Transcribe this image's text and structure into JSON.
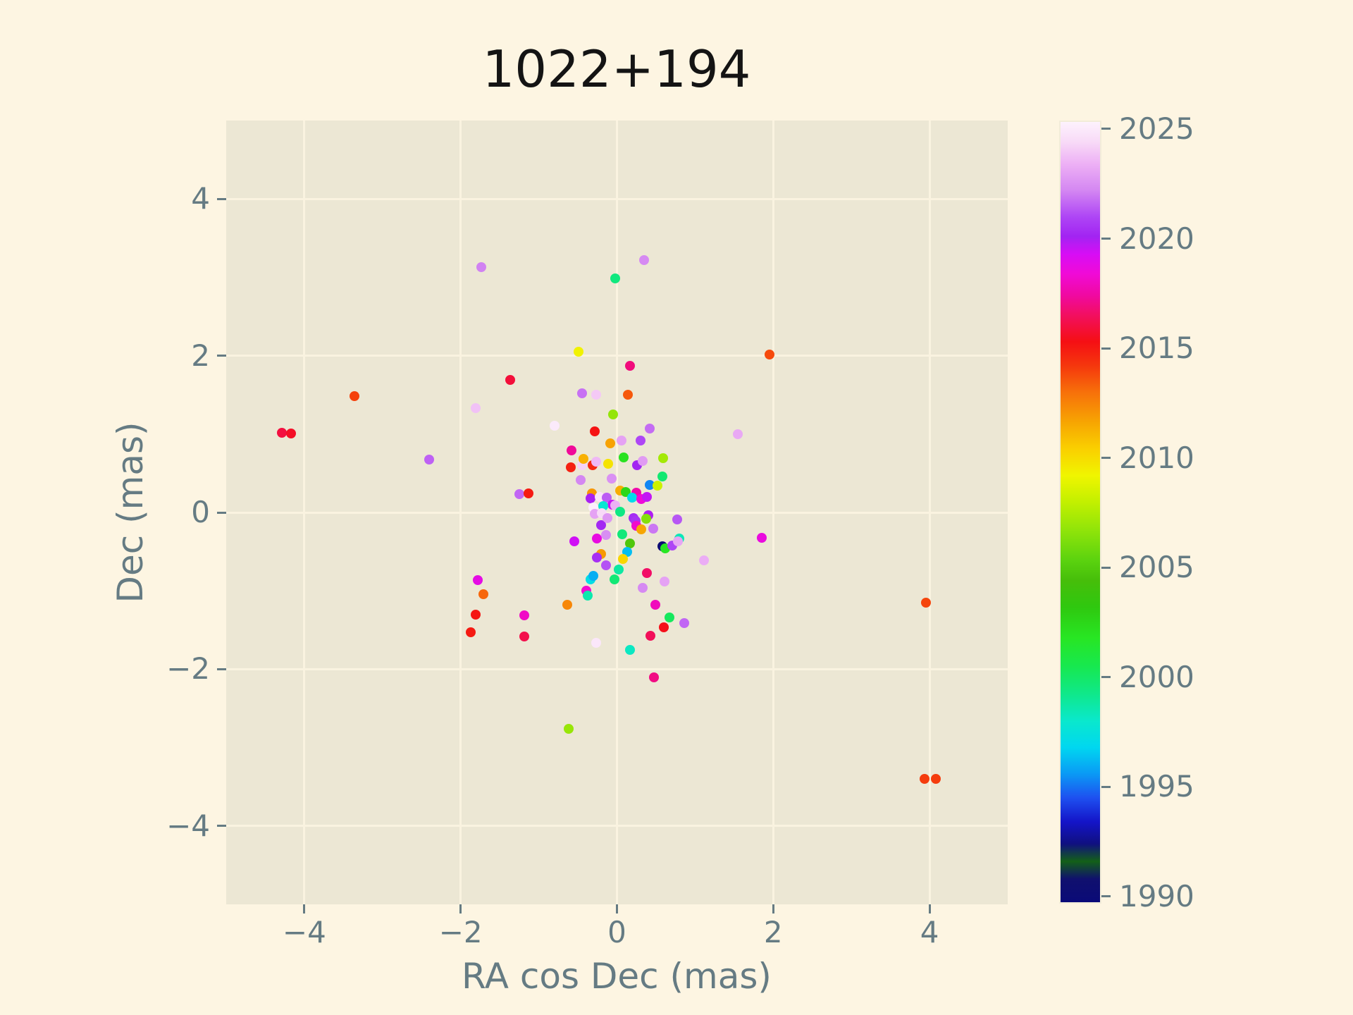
{
  "title": "1022+194",
  "style": {
    "figure_bg": "#fdf5e2",
    "plot_bg": "#ece7d4",
    "grid_color": "#faf3e0",
    "tick_color": "#657b83",
    "title_color": "#141414"
  },
  "axes": {
    "xlabel": "RA cos Dec (mas)",
    "ylabel": "Dec (mas)",
    "xlim": [
      -5,
      5
    ],
    "ylim": [
      -5,
      5
    ],
    "xticks": [
      -4,
      -2,
      0,
      2,
      4
    ],
    "yticks": [
      -4,
      -2,
      0,
      2,
      4
    ],
    "grid": true
  },
  "colorbar": {
    "vmin": 1989.74,
    "vmax": 2025.32,
    "ticks": [
      1990,
      1995,
      2000,
      2005,
      2010,
      2015,
      2020,
      2025
    ],
    "stops": [
      [
        1989.74,
        "#0a0a78"
      ],
      [
        1990.8,
        "#10106e"
      ],
      [
        1991.6,
        "#136018"
      ],
      [
        1992.4,
        "#101080"
      ],
      [
        1993.4,
        "#1414c8"
      ],
      [
        1994.5,
        "#1e50f0"
      ],
      [
        1995.6,
        "#0a9af5"
      ],
      [
        1996.8,
        "#00d7f0"
      ],
      [
        1998.0,
        "#0ae8cd"
      ],
      [
        1999.2,
        "#0fe88c"
      ],
      [
        2000.5,
        "#17e84f"
      ],
      [
        2001.8,
        "#28e623"
      ],
      [
        2003.2,
        "#2fc80f"
      ],
      [
        2004.4,
        "#46be0a"
      ],
      [
        2005.3,
        "#5ad20f"
      ],
      [
        2006.6,
        "#8ce30a"
      ],
      [
        2008.0,
        "#c3f000"
      ],
      [
        2009.2,
        "#f0f500"
      ],
      [
        2010.4,
        "#fad000"
      ],
      [
        2011.6,
        "#f7a602"
      ],
      [
        2013.0,
        "#f7700a"
      ],
      [
        2014.2,
        "#f5370d"
      ],
      [
        2015.3,
        "#f50f14"
      ],
      [
        2016.5,
        "#f20f5f"
      ],
      [
        2017.4,
        "#f009a0"
      ],
      [
        2018.4,
        "#f00ad7"
      ],
      [
        2019.3,
        "#d70df5"
      ],
      [
        2020.1,
        "#a224f2"
      ],
      [
        2021.0,
        "#ae46f5"
      ],
      [
        2022.2,
        "#d487f2"
      ],
      [
        2023.4,
        "#edb0f5"
      ],
      [
        2024.4,
        "#f8daf7"
      ],
      [
        2025.32,
        "#fdf2fd"
      ]
    ]
  },
  "chart_data": {
    "type": "scatter",
    "title": "1022+194",
    "xlabel": "RA cos Dec (mas)",
    "ylabel": "Dec (mas)",
    "xlim": [
      -5,
      5
    ],
    "ylim": [
      -5,
      5
    ],
    "color_dimension": "epoch year (via colorbar 1990-2025)",
    "marker_diameter_px": 14,
    "points": [
      [
        -4.29,
        1.02,
        2016.0
      ],
      [
        -4.17,
        1.01,
        2015.6
      ],
      [
        -3.36,
        1.48,
        2014.0
      ],
      [
        -2.4,
        0.67,
        2021.5
      ],
      [
        -1.74,
        3.13,
        2022.1
      ],
      [
        0.35,
        3.22,
        2022.3
      ],
      [
        -0.02,
        2.99,
        1999.5
      ],
      [
        1.95,
        2.01,
        2013.8
      ],
      [
        -0.49,
        2.05,
        2009.3
      ],
      [
        0.17,
        1.87,
        2016.9
      ],
      [
        -1.37,
        1.69,
        2015.9
      ],
      [
        -0.45,
        1.52,
        2021.8
      ],
      [
        -0.27,
        1.5,
        2024.0
      ],
      [
        0.14,
        1.5,
        2013.5
      ],
      [
        -1.81,
        1.33,
        2023.8
      ],
      [
        -0.05,
        1.25,
        2006.8
      ],
      [
        -0.8,
        1.11,
        2025.0
      ],
      [
        -0.28,
        1.03,
        2015.2
      ],
      [
        0.42,
        1.07,
        2021.7
      ],
      [
        1.55,
        1.0,
        2023.2
      ],
      [
        -0.58,
        0.79,
        2017.3
      ],
      [
        -0.09,
        0.88,
        2011.7
      ],
      [
        0.06,
        0.92,
        2023.0
      ],
      [
        0.3,
        0.92,
        2021.0
      ],
      [
        -0.59,
        0.58,
        2014.8
      ],
      [
        -0.45,
        0.6,
        2024.2
      ],
      [
        -0.31,
        0.6,
        2014.6
      ],
      [
        -0.43,
        0.68,
        2011.3
      ],
      [
        -0.27,
        0.65,
        2023.6
      ],
      [
        -0.11,
        0.62,
        2009.8
      ],
      [
        0.09,
        0.7,
        2002.0
      ],
      [
        0.26,
        0.6,
        2020.1
      ],
      [
        0.33,
        0.66,
        2022.8
      ],
      [
        0.59,
        0.69,
        2007.2
      ],
      [
        -0.46,
        0.41,
        2022.2
      ],
      [
        -0.07,
        0.43,
        2022.5
      ],
      [
        0.58,
        0.46,
        1999.8
      ],
      [
        0.42,
        0.35,
        1995.3
      ],
      [
        0.52,
        0.34,
        2008.2
      ],
      [
        -1.25,
        0.23,
        2021.6
      ],
      [
        -1.13,
        0.24,
        2015.0
      ],
      [
        -0.32,
        0.24,
        2012.0
      ],
      [
        0.04,
        0.28,
        2011.4
      ],
      [
        0.11,
        0.26,
        2002.5
      ],
      [
        0.25,
        0.25,
        2017.6
      ],
      [
        0.19,
        0.19,
        1997.0
      ],
      [
        0.31,
        0.17,
        2018.4
      ],
      [
        0.38,
        0.2,
        2019.6
      ],
      [
        -0.34,
        0.18,
        2020.0
      ],
      [
        -0.22,
        0.2,
        2024.8
      ],
      [
        -0.13,
        0.19,
        2021.4
      ],
      [
        -0.06,
        0.1,
        2019.5
      ],
      [
        -0.02,
        0.09,
        2023.4
      ],
      [
        -0.18,
        0.08,
        1997.8
      ],
      [
        -0.3,
        0.06,
        2025.2
      ],
      [
        -0.28,
        -0.02,
        2023.0
      ],
      [
        -0.19,
        -0.01,
        2024.4
      ],
      [
        0.04,
        0.01,
        1999.4
      ],
      [
        0.21,
        -0.07,
        2020.3
      ],
      [
        0.24,
        -0.11,
        2020.5
      ],
      [
        0.4,
        -0.04,
        2019.9
      ],
      [
        0.37,
        -0.08,
        2006.4
      ],
      [
        0.25,
        -0.17,
        2018.2
      ],
      [
        0.31,
        -0.22,
        2011.6
      ],
      [
        0.46,
        -0.21,
        2021.9
      ],
      [
        0.77,
        -0.09,
        2021.3
      ],
      [
        -0.2,
        -0.16,
        2020.2
      ],
      [
        -0.12,
        -0.07,
        2022.7
      ],
      [
        -0.26,
        -0.33,
        2018.7
      ],
      [
        -0.14,
        -0.29,
        2022.4
      ],
      [
        0.07,
        -0.28,
        1999.6
      ],
      [
        0.17,
        -0.4,
        2004.8
      ],
      [
        0.13,
        -0.5,
        1996.3
      ],
      [
        -0.55,
        -0.37,
        2019.4
      ],
      [
        -0.2,
        -0.53,
        2011.9
      ],
      [
        -0.26,
        -0.58,
        2020.4
      ],
      [
        0.08,
        -0.59,
        2010.2
      ],
      [
        -0.14,
        -0.67,
        2021.2
      ],
      [
        0.02,
        -0.73,
        1998.8
      ],
      [
        0.58,
        -0.43,
        1990.3
      ],
      [
        0.62,
        -0.46,
        2001.8
      ],
      [
        0.71,
        -0.42,
        2021.0
      ],
      [
        0.8,
        -0.33,
        1998.4
      ],
      [
        0.78,
        -0.37,
        2023.1
      ],
      [
        1.11,
        -0.61,
        2023.3
      ],
      [
        1.85,
        -0.32,
        2018.6
      ],
      [
        0.38,
        -0.77,
        2016.6
      ],
      [
        0.61,
        -0.88,
        2023.0
      ],
      [
        0.33,
        -0.96,
        2022.3
      ],
      [
        -0.34,
        -0.85,
        1997.2
      ],
      [
        -0.3,
        -0.81,
        1996.0
      ],
      [
        -0.03,
        -0.85,
        1999.7
      ],
      [
        -0.39,
        -1.0,
        2018.3
      ],
      [
        -0.37,
        -1.06,
        1998.6
      ],
      [
        -1.78,
        -0.86,
        2018.8
      ],
      [
        -1.71,
        -1.04,
        2013.2
      ],
      [
        -1.81,
        -1.3,
        2015.1
      ],
      [
        -1.19,
        -1.31,
        2018.1
      ],
      [
        -0.64,
        -1.18,
        2012.4
      ],
      [
        0.49,
        -1.18,
        2017.9
      ],
      [
        0.67,
        -1.34,
        2000.2
      ],
      [
        0.86,
        -1.41,
        2021.6
      ],
      [
        0.6,
        -1.47,
        2015.4
      ],
      [
        0.43,
        -1.57,
        2016.4
      ],
      [
        0.17,
        -1.75,
        1998.2
      ],
      [
        -0.27,
        -1.66,
        2024.9
      ],
      [
        -1.87,
        -1.53,
        2015.0
      ],
      [
        -1.19,
        -1.58,
        2016.2
      ],
      [
        0.47,
        -2.1,
        2017.0
      ],
      [
        -0.62,
        -2.76,
        2006.9
      ],
      [
        3.95,
        -1.15,
        2013.9
      ],
      [
        3.94,
        -3.4,
        2014.1
      ],
      [
        4.08,
        -3.4,
        2014.1
      ]
    ]
  }
}
